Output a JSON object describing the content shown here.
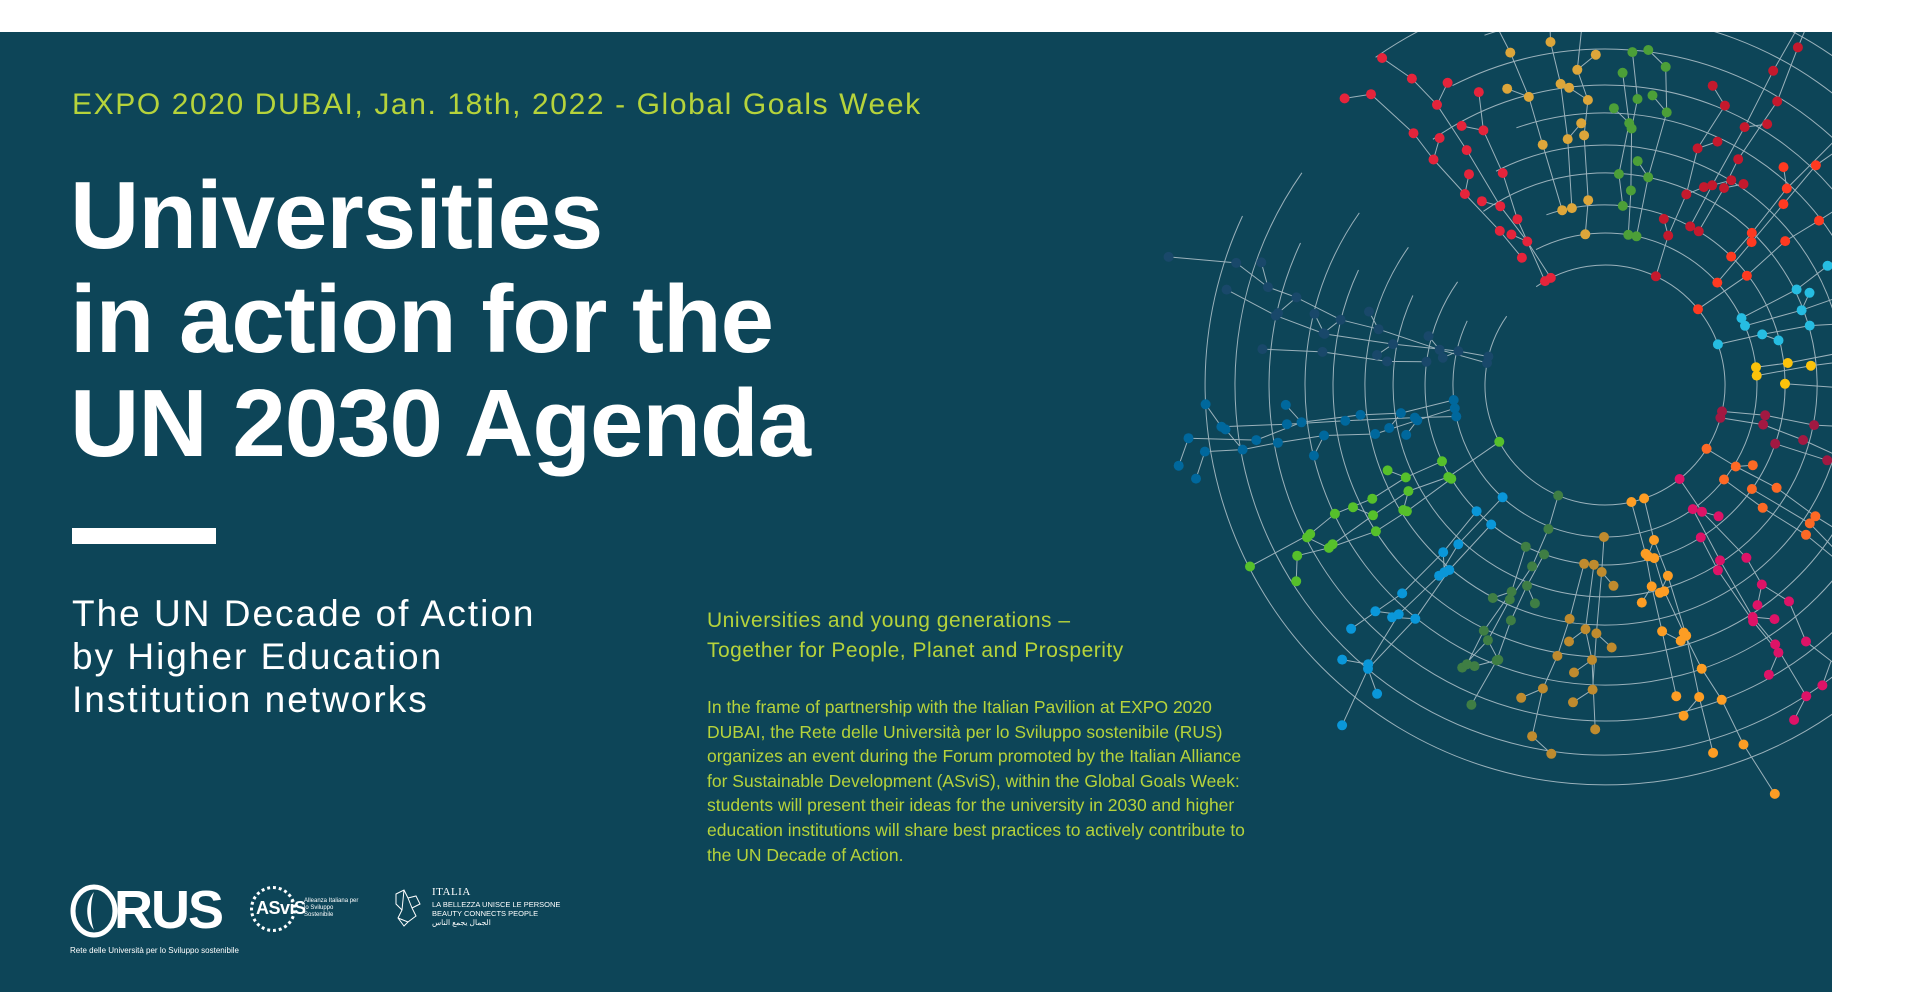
{
  "event_line": "EXPO 2020 DUBAI, Jan. 18th, 2022 - Global Goals Week",
  "headline": [
    "Universities",
    "in action for the",
    "UN 2030 Agenda"
  ],
  "decade": [
    "The UN Decade of Action",
    "by Higher Education",
    "Institution networks"
  ],
  "tagline": [
    "Universities and young generations –",
    "Together for People, Planet and Prosperity"
  ],
  "body": "In the frame of partnership with the Italian Pavilion at EXPO 2020 DUBAI, the Rete delle Università per lo Sviluppo sostenibile (RUS) organizes an event during the Forum promoted by the Italian Alliance for Sustainable Development (ASviS), within the Global Goals Week: students will present their ideas for the university in 2030 and higher education institutions will share best practices to actively contribute to the UN Decade of Action.",
  "logos": {
    "rus": {
      "letters": "RUS",
      "subtitle": "Rete delle Università per lo Sviluppo sostenibile"
    },
    "asvis": {
      "word": "ASviS",
      "subtitle": "Alleanza Italiana per lo Sviluppo Sostenibile"
    },
    "italia": {
      "title": "ITALIA",
      "line1": "LA BELLEZZA UNISCE LE PERSONE",
      "line2": "BEAUTY CONNECTS PEOPLE",
      "line3": "الجمال يجمع الناس"
    }
  },
  "colors": {
    "background": "#0d4558",
    "accent": "#b6d33b",
    "network_lines": "#c9d6dc",
    "node_palette": [
      "#e5243b",
      "#dda63a",
      "#4c9f38",
      "#c5192d",
      "#ff3a21",
      "#26bde2",
      "#fcc30b",
      "#a21942",
      "#fd6925",
      "#dd1367",
      "#fd9d24",
      "#bf8b2e",
      "#3f7e44",
      "#0a97d9",
      "#56c02b",
      "#00689d",
      "#19486a"
    ]
  }
}
